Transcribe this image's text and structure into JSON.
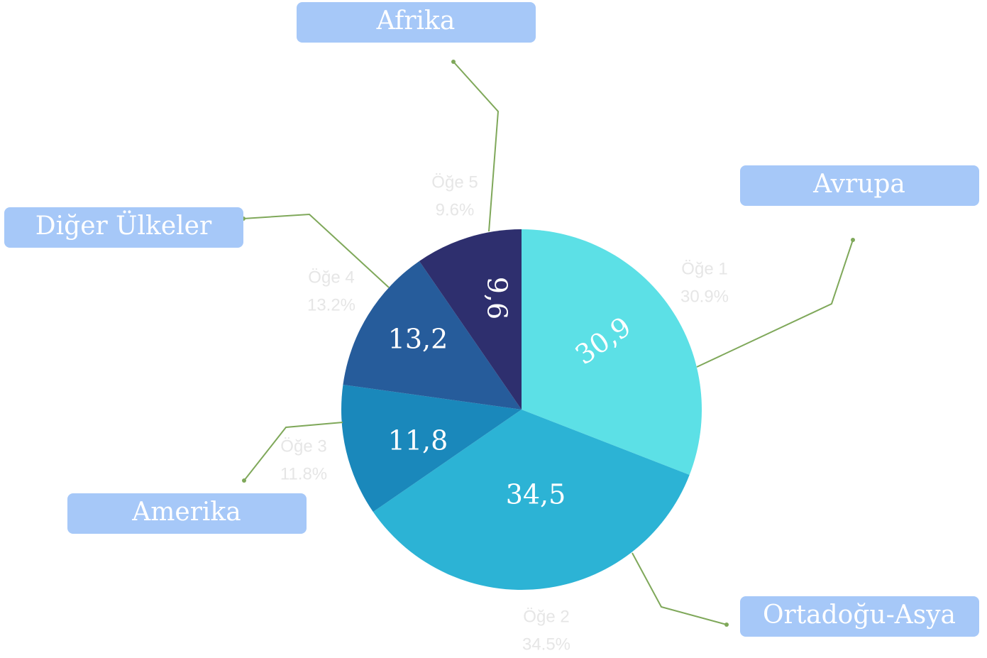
{
  "chart_data": {
    "type": "pie",
    "categories": [
      "Öğe 1",
      "Öğe 2",
      "Öğe 3",
      "Öğe 4",
      "Öğe 5"
    ],
    "values": [
      30.9,
      34.5,
      11.8,
      13.2,
      9.6
    ],
    "value_labels": [
      "30,9",
      "34,5",
      "11,8",
      "13,2",
      "9,6"
    ],
    "percent_labels": [
      "30.9%",
      "34.5%",
      "11.8%",
      "13.2%",
      "9.6%"
    ],
    "regions": [
      "Avrupa",
      "Ortadoğu-Asya",
      "Amerika",
      "Diğer Ülkeler",
      "Afrika"
    ],
    "colors": [
      "#5ce0e6",
      "#2cb3d5",
      "#1a88bb",
      "#265c9b",
      "#2e2f6e"
    ]
  }
}
